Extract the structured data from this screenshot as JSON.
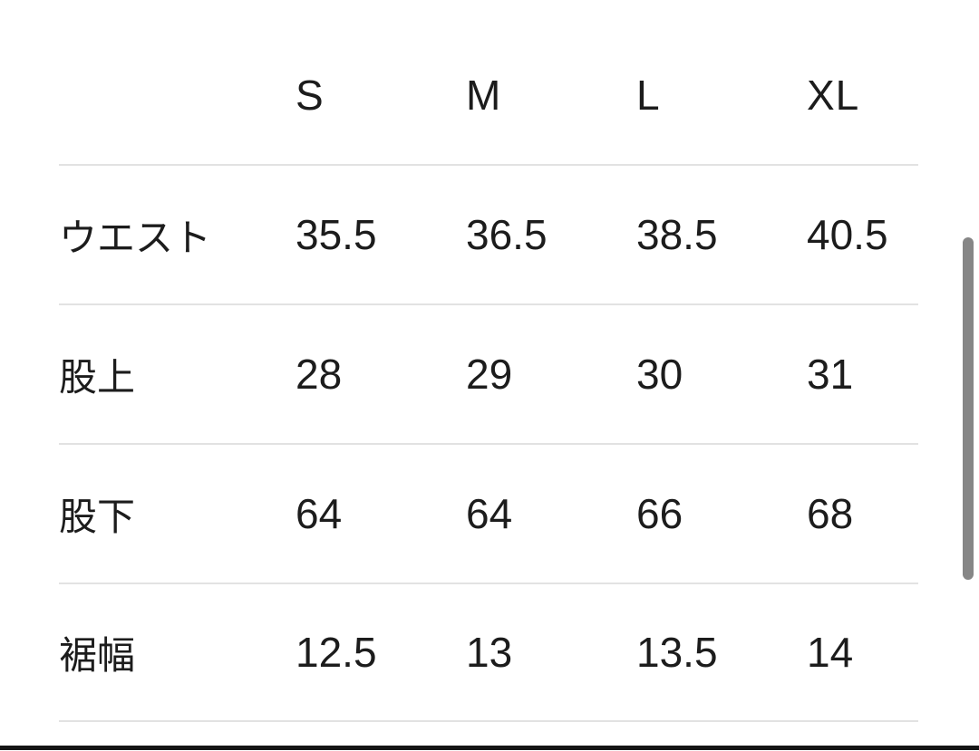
{
  "table": {
    "column_headers": [
      "S",
      "M",
      "L",
      "XL"
    ],
    "rows": [
      {
        "label": "ウエスト",
        "values": [
          "35.5",
          "36.5",
          "38.5",
          "40.5"
        ]
      },
      {
        "label": "股上",
        "values": [
          "28",
          "29",
          "30",
          "31"
        ]
      },
      {
        "label": "股下",
        "values": [
          "64",
          "64",
          "66",
          "68"
        ]
      },
      {
        "label": "裾幅",
        "values": [
          "12.5",
          "13",
          "13.5",
          "14"
        ]
      }
    ]
  },
  "scrollbar": {
    "visible": true
  },
  "colors": {
    "background": "#ffffff",
    "text": "#1c1c1c",
    "divider": "#e2e2e2",
    "scrollbar_thumb": "#868686",
    "bottom_bar": "#151515"
  }
}
